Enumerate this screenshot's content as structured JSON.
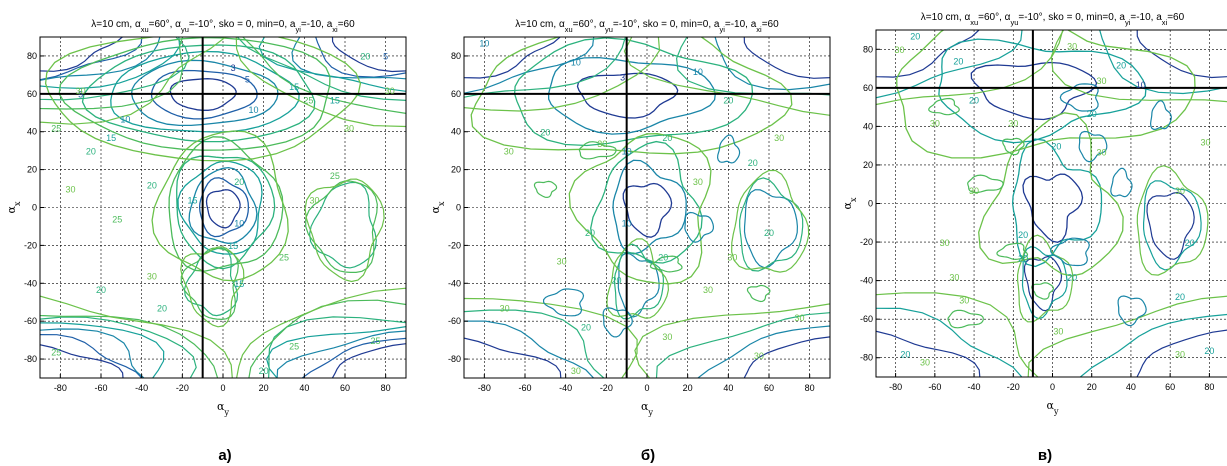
{
  "panels": [
    {
      "label": "а)",
      "chart_data": {
        "type": "contour",
        "title": "λ=10 cm, α_xu=60°, α_yu=-10°, sko = 0, min=0, a_yi=-10, a_xi=60",
        "xlabel": "α_y",
        "ylabel": "α_x",
        "xlim": [
          -90,
          90
        ],
        "ylim": [
          -90,
          90
        ],
        "xticks": [
          -80,
          -60,
          -40,
          -20,
          0,
          20,
          40,
          60,
          80
        ],
        "yticks": [
          -80,
          -60,
          -40,
          -20,
          0,
          20,
          40,
          60,
          80
        ],
        "grid": true,
        "crosshair": {
          "x": -10,
          "y": 60
        },
        "contour_levels": [
          3,
          5,
          10,
          15,
          20,
          25,
          30
        ],
        "contour_labels": [
          {
            "text": "3",
            "x": 5,
            "y": 72
          },
          {
            "text": "5",
            "x": 12,
            "y": 66
          },
          {
            "text": "10",
            "x": 15,
            "y": 50
          },
          {
            "text": "15",
            "x": 35,
            "y": 62
          },
          {
            "text": "20",
            "x": 70,
            "y": 78
          },
          {
            "text": "25",
            "x": 42,
            "y": 55
          },
          {
            "text": "30",
            "x": 62,
            "y": 40
          },
          {
            "text": "10",
            "x": -48,
            "y": 45
          },
          {
            "text": "15",
            "x": -55,
            "y": 35
          },
          {
            "text": "5",
            "x": -70,
            "y": 58
          },
          {
            "text": "20",
            "x": -65,
            "y": 28
          },
          {
            "text": "25",
            "x": -82,
            "y": 40
          },
          {
            "text": "30",
            "x": -70,
            "y": 60
          },
          {
            "text": "30",
            "x": -75,
            "y": 8
          },
          {
            "text": "20",
            "x": -35,
            "y": 10
          },
          {
            "text": "15",
            "x": -15,
            "y": 2
          },
          {
            "text": "20",
            "x": 8,
            "y": 12
          },
          {
            "text": "10",
            "x": 8,
            "y": -10
          },
          {
            "text": "15",
            "x": 5,
            "y": -22
          },
          {
            "text": "25",
            "x": -52,
            "y": -8
          },
          {
            "text": "30",
            "x": 45,
            "y": 2
          },
          {
            "text": "25",
            "x": 55,
            "y": 15
          },
          {
            "text": "25",
            "x": 30,
            "y": -28
          },
          {
            "text": "15",
            "x": 8,
            "y": -42
          },
          {
            "text": "20",
            "x": -60,
            "y": -45
          },
          {
            "text": "30",
            "x": -35,
            "y": -38
          },
          {
            "text": "20",
            "x": -30,
            "y": -55
          },
          {
            "text": "25",
            "x": -82,
            "y": -78
          },
          {
            "text": "25",
            "x": 35,
            "y": -75
          },
          {
            "text": "20",
            "x": 20,
            "y": -88
          },
          {
            "text": "25",
            "x": 75,
            "y": -72
          },
          {
            "text": "15",
            "x": 55,
            "y": 55
          },
          {
            "text": "5",
            "x": 80,
            "y": 78
          },
          {
            "text": "30",
            "x": 82,
            "y": 60
          }
        ]
      }
    },
    {
      "label": "б)",
      "chart_data": {
        "type": "contour",
        "title": "λ=10 cm, α_xu=60°, α_yu=-10°, sko = 0, min=0, a_yi=-10, a_xi=60",
        "xlabel": "α_y",
        "ylabel": "α_x",
        "xlim": [
          -90,
          90
        ],
        "ylim": [
          -90,
          90
        ],
        "xticks": [
          -80,
          -60,
          -40,
          -20,
          0,
          20,
          40,
          60,
          80
        ],
        "yticks": [
          -80,
          -60,
          -40,
          -20,
          0,
          20,
          40,
          60,
          80
        ],
        "grid": true,
        "crosshair": {
          "x": -10,
          "y": 60
        },
        "contour_levels": [
          3,
          10,
          20,
          30
        ],
        "contour_labels": [
          {
            "text": "10",
            "x": -80,
            "y": 85
          },
          {
            "text": "10",
            "x": -35,
            "y": 75
          },
          {
            "text": "3",
            "x": -12,
            "y": 67
          },
          {
            "text": "10",
            "x": 25,
            "y": 70
          },
          {
            "text": "20",
            "x": 40,
            "y": 55
          },
          {
            "text": "30",
            "x": 65,
            "y": 35
          },
          {
            "text": "10",
            "x": -10,
            "y": 28
          },
          {
            "text": "30",
            "x": -22,
            "y": 32
          },
          {
            "text": "20",
            "x": 10,
            "y": 35
          },
          {
            "text": "20",
            "x": -50,
            "y": 38
          },
          {
            "text": "30",
            "x": -68,
            "y": 28
          },
          {
            "text": "20",
            "x": 52,
            "y": 22
          },
          {
            "text": "30",
            "x": 25,
            "y": 12
          },
          {
            "text": "10",
            "x": -10,
            "y": -10
          },
          {
            "text": "20",
            "x": -28,
            "y": -15
          },
          {
            "text": "20",
            "x": 60,
            "y": -15
          },
          {
            "text": "30",
            "x": -42,
            "y": -30
          },
          {
            "text": "30",
            "x": 42,
            "y": -28
          },
          {
            "text": "20",
            "x": 8,
            "y": -28
          },
          {
            "text": "20",
            "x": -15,
            "y": -40
          },
          {
            "text": "30",
            "x": 30,
            "y": -45
          },
          {
            "text": "20",
            "x": -30,
            "y": -65
          },
          {
            "text": "30",
            "x": -70,
            "y": -55
          },
          {
            "text": "30",
            "x": 55,
            "y": -80
          },
          {
            "text": "30",
            "x": -35,
            "y": -88
          },
          {
            "text": "30",
            "x": 10,
            "y": -70
          },
          {
            "text": "30",
            "x": 75,
            "y": -60
          }
        ]
      }
    },
    {
      "label": "в)",
      "chart_data": {
        "type": "contour",
        "title": "λ=10 cm, α_xu=60°, α_yu=-10°, sko = 0, min=0, a_yi=-10, a_xi=60",
        "xlabel": "α_y",
        "ylabel": "α_x",
        "xlim": [
          -90,
          90
        ],
        "ylim": [
          -90,
          90
        ],
        "xticks": [
          -80,
          -60,
          -40,
          -20,
          0,
          20,
          40,
          60,
          80
        ],
        "yticks": [
          -80,
          -60,
          -40,
          -20,
          0,
          20,
          40,
          60,
          80
        ],
        "grid": true,
        "crosshair": {
          "x": -10,
          "y": 60
        },
        "contour_levels": [
          10,
          20,
          30
        ],
        "contour_labels": [
          {
            "text": "20",
            "x": -70,
            "y": 85
          },
          {
            "text": "30",
            "x": -78,
            "y": 78
          },
          {
            "text": "20",
            "x": -48,
            "y": 72
          },
          {
            "text": "30",
            "x": 10,
            "y": 80
          },
          {
            "text": "30",
            "x": 25,
            "y": 62
          },
          {
            "text": "20",
            "x": 35,
            "y": 70
          },
          {
            "text": "10",
            "x": 45,
            "y": 60
          },
          {
            "text": "20",
            "x": -40,
            "y": 52
          },
          {
            "text": "30",
            "x": -20,
            "y": 40
          },
          {
            "text": "20",
            "x": 20,
            "y": 45
          },
          {
            "text": "30",
            "x": -60,
            "y": 40
          },
          {
            "text": "30",
            "x": 78,
            "y": 30
          },
          {
            "text": "20",
            "x": 2,
            "y": 28
          },
          {
            "text": "30",
            "x": 25,
            "y": 25
          },
          {
            "text": "30",
            "x": -40,
            "y": 5
          },
          {
            "text": "30",
            "x": 65,
            "y": 5
          },
          {
            "text": "20",
            "x": -15,
            "y": -18
          },
          {
            "text": "30",
            "x": -55,
            "y": -22
          },
          {
            "text": "20",
            "x": 70,
            "y": -22
          },
          {
            "text": "20",
            "x": -15,
            "y": -30
          },
          {
            "text": "20",
            "x": 10,
            "y": -40
          },
          {
            "text": "30",
            "x": -50,
            "y": -40
          },
          {
            "text": "30",
            "x": -45,
            "y": -52
          },
          {
            "text": "20",
            "x": 65,
            "y": -50
          },
          {
            "text": "30",
            "x": 3,
            "y": -68
          },
          {
            "text": "20",
            "x": -75,
            "y": -80
          },
          {
            "text": "30",
            "x": -65,
            "y": -84
          },
          {
            "text": "30",
            "x": 65,
            "y": -80
          },
          {
            "text": "20",
            "x": 80,
            "y": -78
          }
        ]
      }
    }
  ]
}
